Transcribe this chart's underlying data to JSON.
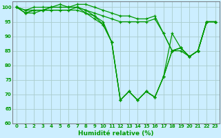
{
  "xlabel": "Humidité relative (%)",
  "bg_color": "#cceeff",
  "grid_color": "#aacccc",
  "line_color": "#009900",
  "xlim": [
    -0.5,
    23.5
  ],
  "ylim": [
    60,
    102
  ],
  "xticks": [
    0,
    1,
    2,
    3,
    4,
    5,
    6,
    7,
    8,
    9,
    10,
    11,
    12,
    13,
    14,
    15,
    16,
    17,
    18,
    19,
    20,
    21,
    22,
    23
  ],
  "yticks": [
    60,
    65,
    70,
    75,
    80,
    85,
    90,
    95,
    100
  ],
  "series": [
    [
      100,
      99,
      100,
      100,
      100,
      101,
      100,
      101,
      101,
      100,
      99,
      98,
      97,
      97,
      96,
      96,
      97,
      91,
      85,
      86,
      83,
      85,
      95,
      95
    ],
    [
      100,
      99,
      99,
      99,
      100,
      100,
      100,
      100,
      99,
      98,
      97,
      96,
      95,
      95,
      95,
      95,
      96,
      91,
      85,
      86,
      83,
      85,
      95,
      95
    ],
    [
      100,
      98,
      99,
      99,
      100,
      100,
      100,
      100,
      99,
      97,
      95,
      88,
      68,
      71,
      68,
      71,
      69,
      76,
      91,
      86,
      83,
      85,
      95,
      95
    ],
    [
      100,
      98,
      99,
      99,
      99,
      99,
      99,
      100,
      98,
      97,
      94,
      88,
      68,
      71,
      68,
      71,
      69,
      76,
      85,
      86,
      83,
      85,
      95,
      95
    ],
    [
      100,
      98,
      98,
      99,
      99,
      99,
      99,
      99,
      98,
      96,
      94,
      88,
      68,
      71,
      68,
      71,
      69,
      76,
      85,
      85,
      83,
      85,
      95,
      95
    ]
  ]
}
